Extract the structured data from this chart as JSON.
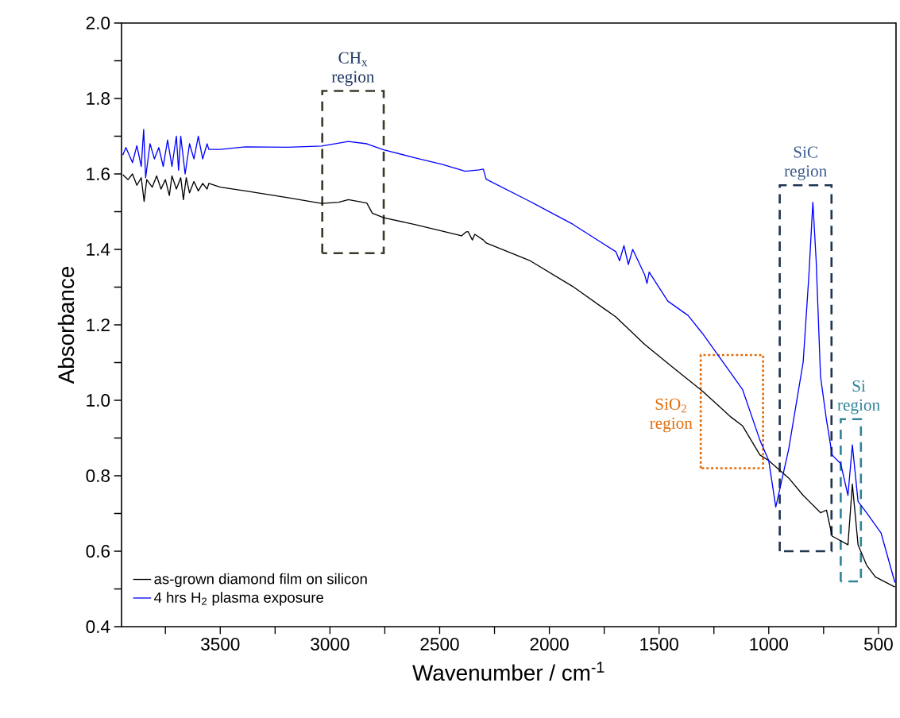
{
  "chart_data": {
    "type": "line",
    "xlabel": "Wavenumber / cm$^{-1}$",
    "ylabel": "Absorbance",
    "xlim": [
      3950,
      420
    ],
    "ylim": [
      0.4,
      2.0
    ],
    "xticks": [
      {
        "value": 3750,
        "label": null
      },
      3500,
      {
        "value": 3250,
        "label": null
      },
      3000,
      {
        "value": 2750,
        "label": null
      },
      2500,
      {
        "value": 2250,
        "label": null
      },
      2000,
      {
        "value": 1750,
        "label": null
      },
      1500,
      {
        "value": 1250,
        "label": null
      },
      1000,
      {
        "value": 750,
        "label": null
      },
      500
    ],
    "yticks": [
      {
        "value": 0.4,
        "label": "0.4"
      },
      {
        "value": 0.5,
        "label": null
      },
      {
        "value": 0.6,
        "label": "0.6"
      },
      {
        "value": 0.7,
        "label": null
      },
      {
        "value": 0.8,
        "label": "0.8"
      },
      {
        "value": 0.9,
        "label": null
      },
      {
        "value": 1.0,
        "label": "1.0"
      },
      {
        "value": 1.1,
        "label": null
      },
      {
        "value": 1.2,
        "label": "1.2"
      },
      {
        "value": 1.3,
        "label": null
      },
      {
        "value": 1.4,
        "label": "1.4"
      },
      {
        "value": 1.5,
        "label": null
      },
      {
        "value": 1.6,
        "label": "1.6"
      },
      {
        "value": 1.7,
        "label": null
      },
      {
        "value": 1.8,
        "label": "1.8"
      },
      {
        "value": 1.9,
        "label": null
      },
      {
        "value": 2.0,
        "label": "2.0"
      }
    ],
    "legend": "bottom left",
    "series": [
      {
        "name": "as-grown diamond film on silicon",
        "color": "#000000",
        "x": [
          3944,
          3920,
          3900,
          3880,
          3860,
          3847,
          3835,
          3810,
          3790,
          3770,
          3750,
          3732,
          3720,
          3700,
          3680,
          3668,
          3655,
          3640,
          3620,
          3600,
          3580,
          3560,
          3552,
          3500,
          3385,
          3192,
          3038,
          2960,
          2916,
          2832,
          2807,
          2755,
          2614,
          2486,
          2400,
          2381,
          2370,
          2351,
          2340,
          2301,
          2288,
          2091,
          1894,
          1697,
          1565,
          1434,
          1303,
          1171,
          1119,
          1040,
          1000,
          909,
          843,
          764,
          737,
          711,
          639,
          619,
          593,
          554,
          514,
          425
        ],
        "values": [
          1.598,
          1.585,
          1.6,
          1.57,
          1.59,
          1.527,
          1.585,
          1.565,
          1.595,
          1.56,
          1.585,
          1.543,
          1.595,
          1.56,
          1.59,
          1.532,
          1.59,
          1.55,
          1.58,
          1.555,
          1.575,
          1.56,
          1.575,
          1.565,
          1.555,
          1.537,
          1.522,
          1.525,
          1.532,
          1.523,
          1.496,
          1.484,
          1.466,
          1.448,
          1.436,
          1.446,
          1.447,
          1.425,
          1.44,
          1.425,
          1.417,
          1.371,
          1.302,
          1.221,
          1.148,
          1.086,
          1.025,
          0.955,
          0.932,
          0.855,
          0.84,
          0.794,
          0.748,
          0.702,
          0.709,
          0.64,
          0.617,
          0.778,
          0.617,
          0.563,
          0.532,
          0.505
        ]
      },
      {
        "name": "4 hrs H$_{2}$ plasma exposure",
        "color": "#0000ff",
        "x": [
          3944,
          3930,
          3900,
          3880,
          3860,
          3849,
          3840,
          3820,
          3800,
          3780,
          3760,
          3740,
          3720,
          3700,
          3690,
          3680,
          3660,
          3640,
          3620,
          3600,
          3580,
          3560,
          3552,
          3500,
          3385,
          3192,
          3038,
          2916,
          2832,
          2755,
          2614,
          2486,
          2383,
          2320,
          2301,
          2288,
          2091,
          1894,
          1697,
          1680,
          1660,
          1640,
          1620,
          1565,
          1555,
          1545,
          1460,
          1368,
          1303,
          1171,
          1119,
          1040,
          1000,
          968,
          909,
          843,
          817,
          799,
          784,
          764,
          737,
          711,
          672,
          639,
          619,
          593,
          554,
          488,
          425
        ],
        "values": [
          1.65,
          1.67,
          1.63,
          1.675,
          1.62,
          1.718,
          1.59,
          1.68,
          1.64,
          1.67,
          1.62,
          1.69,
          1.62,
          1.7,
          1.61,
          1.7,
          1.6,
          1.68,
          1.64,
          1.7,
          1.64,
          1.68,
          1.665,
          1.665,
          1.672,
          1.671,
          1.674,
          1.686,
          1.68,
          1.664,
          1.643,
          1.625,
          1.607,
          1.611,
          1.613,
          1.586,
          1.528,
          1.467,
          1.394,
          1.37,
          1.41,
          1.36,
          1.4,
          1.332,
          1.31,
          1.34,
          1.263,
          1.225,
          1.178,
          1.071,
          1.028,
          0.894,
          0.84,
          0.717,
          0.871,
          1.102,
          1.332,
          1.525,
          1.371,
          1.063,
          0.948,
          0.855,
          0.832,
          0.748,
          0.882,
          0.732,
          0.702,
          0.648,
          0.517
        ]
      }
    ],
    "annotations": [
      "CH$_{x}$ region",
      "SiO$_{2}$ region",
      "SiC region",
      "Si region"
    ]
  }
}
